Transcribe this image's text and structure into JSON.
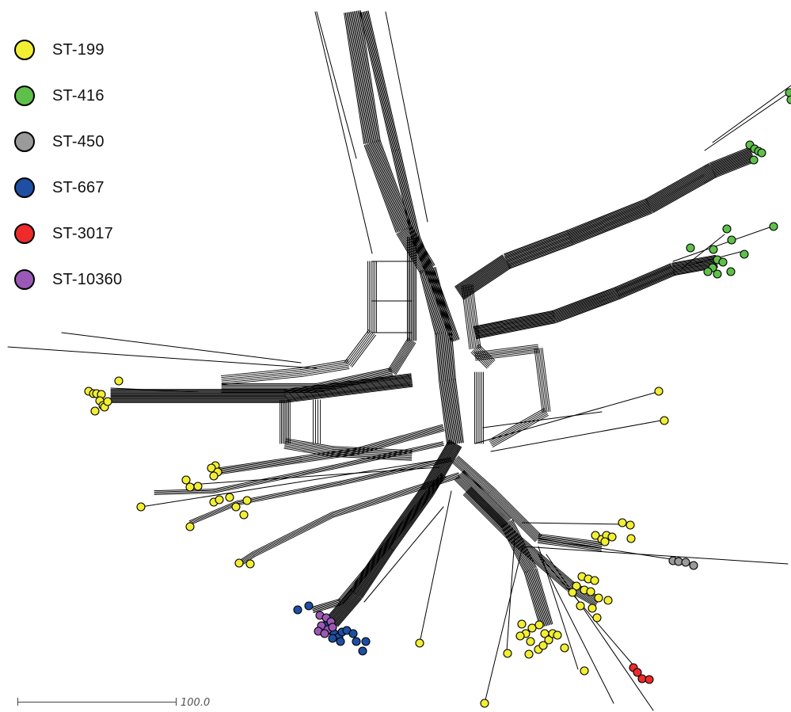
{
  "legend": {
    "items": [
      {
        "label": "ST-199",
        "color": "#f2ee33"
      },
      {
        "label": "ST-416",
        "color": "#5ec04a"
      },
      {
        "label": "ST-450",
        "color": "#9a9a9a"
      },
      {
        "label": "ST-667",
        "color": "#1f4fa3"
      },
      {
        "label": "ST-3017",
        "color": "#ee2b2b"
      },
      {
        "label": "ST-10360",
        "color": "#9b59b6"
      }
    ]
  },
  "scale_bar": {
    "label": "100.0"
  },
  "network": {
    "edge_color": "#000000",
    "node_outline": "#000000"
  }
}
